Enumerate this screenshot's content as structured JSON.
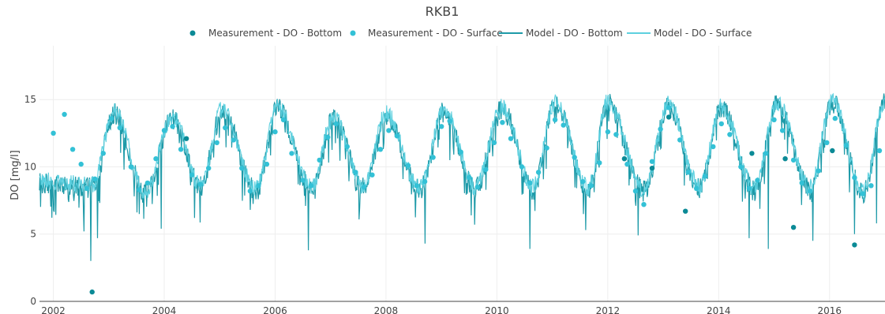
{
  "chart_data": {
    "type": "line",
    "title": "RKB1",
    "xlabel": "",
    "ylabel": "DO [mg/l]",
    "xlim": [
      2001.75,
      2017.0
    ],
    "ylim": [
      0,
      19
    ],
    "x_ticks": [
      2002,
      2004,
      2006,
      2008,
      2010,
      2012,
      2014,
      2016
    ],
    "y_ticks": [
      0,
      5,
      10,
      15
    ],
    "grid": true,
    "legend_position": "top-center",
    "colors": {
      "bottom": "#0b8a96",
      "surface": "#33c1d6",
      "model_bottom": "#1e9aa8",
      "model_surface": "#5dd0df"
    },
    "series": [
      {
        "name": "Measurement - DO - Bottom",
        "kind": "markers",
        "color": "#0b8a96",
        "x": [
          2002.7,
          2004.4,
          2012.3,
          2012.8,
          2013.1,
          2013.4,
          2014.6,
          2015.2,
          2015.35,
          2016.05,
          2016.45
        ],
        "y": [
          0.7,
          12.1,
          10.6,
          9.9,
          13.7,
          6.7,
          11.0,
          10.6,
          5.5,
          11.2,
          4.2
        ]
      },
      {
        "name": "Measurement - DO - Surface",
        "kind": "markers",
        "color": "#33c1d6",
        "x": [
          2002.0,
          2002.2,
          2002.35,
          2002.5,
          2002.6,
          2002.75,
          2002.9,
          2003.05,
          2003.2,
          2003.4,
          2003.55,
          2003.7,
          2003.85,
          2004.0,
          2004.15,
          2004.3,
          2004.5,
          2004.65,
          2004.8,
          2004.95,
          2005.1,
          2005.25,
          2005.4,
          2005.55,
          2005.7,
          2005.85,
          2006.0,
          2006.15,
          2006.3,
          2006.5,
          2006.65,
          2006.8,
          2006.95,
          2007.1,
          2007.3,
          2007.45,
          2007.6,
          2007.75,
          2007.9,
          2008.05,
          2008.2,
          2008.4,
          2008.55,
          2008.7,
          2008.85,
          2009.0,
          2009.15,
          2009.35,
          2009.5,
          2009.65,
          2009.8,
          2009.95,
          2010.1,
          2010.25,
          2010.45,
          2010.6,
          2010.75,
          2010.9,
          2011.05,
          2011.2,
          2011.4,
          2011.55,
          2011.7,
          2011.85,
          2012.0,
          2012.15,
          2012.35,
          2012.5,
          2012.65,
          2012.8,
          2012.95,
          2013.1,
          2013.3,
          2013.45,
          2013.6,
          2013.75,
          2013.9,
          2014.05,
          2014.2,
          2014.4,
          2014.55,
          2014.7,
          2014.85,
          2015.0,
          2015.15,
          2015.35,
          2015.5,
          2015.65,
          2015.8,
          2015.95,
          2016.1,
          2016.3,
          2016.45,
          2016.6,
          2016.75,
          2016.9
        ],
        "y": [
          12.5,
          13.9,
          11.3,
          10.2,
          8.4,
          9.1,
          11.0,
          13.6,
          12.9,
          10.0,
          8.3,
          8.8,
          10.6,
          12.7,
          13.0,
          11.3,
          9.4,
          8.7,
          9.9,
          11.8,
          12.9,
          12.0,
          9.9,
          8.2,
          8.6,
          10.2,
          12.6,
          13.5,
          11.0,
          9.0,
          8.6,
          10.5,
          12.2,
          13.2,
          11.5,
          9.6,
          8.5,
          9.4,
          11.3,
          12.7,
          12.3,
          10.1,
          8.6,
          8.9,
          10.7,
          13.0,
          13.4,
          11.1,
          9.2,
          8.5,
          9.8,
          11.8,
          13.3,
          12.1,
          10.0,
          8.8,
          9.6,
          11.4,
          13.5,
          13.1,
          10.7,
          8.9,
          8.6,
          10.3,
          12.6,
          12.4,
          10.2,
          8.2,
          7.2,
          10.4,
          12.8,
          14.4,
          12.0,
          9.6,
          8.4,
          9.3,
          11.5,
          13.2,
          12.4,
          10.0,
          8.4,
          9.0,
          11.0,
          13.5,
          12.7,
          10.5,
          8.8,
          8.2,
          9.7,
          11.8,
          13.6,
          11.6,
          9.2,
          8.0,
          8.6,
          11.2
        ]
      },
      {
        "name": "Model - DO - Bottom",
        "kind": "line",
        "color": "#1e9aa8",
        "x": [],
        "y": []
      },
      {
        "name": "Model - DO - Surface",
        "kind": "line",
        "color": "#5dd0df",
        "x": [],
        "y": []
      }
    ],
    "model_profile": {
      "peak_times": [
        2003.1,
        2004.15,
        2005.05,
        2006.05,
        2007.05,
        2008.0,
        2009.05,
        2010.1,
        2011.05,
        2012.0,
        2013.1,
        2014.05,
        2015.05,
        2016.05
      ],
      "peak_values": [
        14.0,
        13.6,
        14.2,
        14.3,
        13.5,
        13.8,
        14.1,
        14.3,
        14.6,
        14.7,
        14.5,
        14.3,
        14.6,
        14.8
      ],
      "trough_times": [
        2002.7,
        2003.65,
        2004.65,
        2005.65,
        2006.65,
        2007.6,
        2008.6,
        2009.6,
        2010.65,
        2011.65,
        2012.65,
        2013.65,
        2014.65,
        2015.65,
        2016.6
      ],
      "trough_values": [
        8.5,
        8.0,
        8.5,
        8.2,
        8.4,
        8.4,
        8.3,
        8.4,
        8.3,
        8.3,
        8.2,
        8.4,
        8.2,
        8.3,
        8.0
      ],
      "start_value": 8.8,
      "end_value": 14.7,
      "dip_events": [
        {
          "x": 2002.55,
          "y": 5.2
        },
        {
          "x": 2002.68,
          "y": 3.0
        },
        {
          "x": 2002.8,
          "y": 4.7
        },
        {
          "x": 2003.55,
          "y": 6.5
        },
        {
          "x": 2003.95,
          "y": 5.4
        },
        {
          "x": 2004.55,
          "y": 6.2
        },
        {
          "x": 2005.55,
          "y": 6.8
        },
        {
          "x": 2006.6,
          "y": 3.8
        },
        {
          "x": 2008.7,
          "y": 4.3
        },
        {
          "x": 2009.6,
          "y": 5.7
        },
        {
          "x": 2010.6,
          "y": 3.9
        },
        {
          "x": 2011.6,
          "y": 5.3
        },
        {
          "x": 2012.55,
          "y": 4.9
        },
        {
          "x": 2014.55,
          "y": 4.7
        },
        {
          "x": 2014.9,
          "y": 3.9
        },
        {
          "x": 2015.7,
          "y": 4.5
        },
        {
          "x": 2016.45,
          "y": 5.0
        },
        {
          "x": 2016.85,
          "y": 5.8
        }
      ]
    }
  }
}
